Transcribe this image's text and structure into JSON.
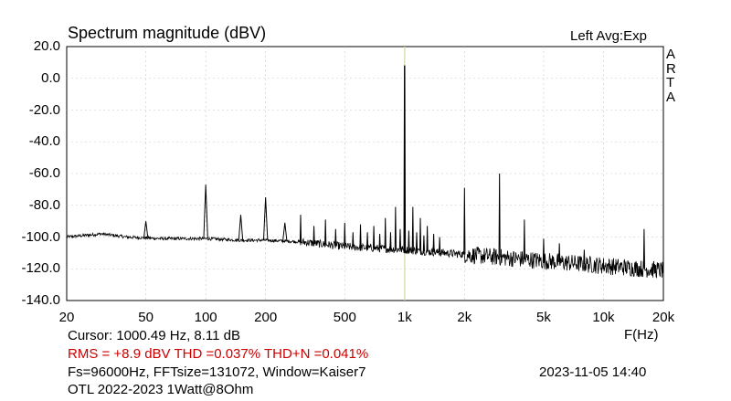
{
  "header": {
    "title": "Spectrum magnitude (dBV)",
    "channel_avg": "Left  Avg:Exp",
    "brand_letters": [
      "A",
      "R",
      "T",
      "A"
    ]
  },
  "axes": {
    "x_unit_label": "F(Hz)"
  },
  "info": {
    "cursor": "Cursor: 1000.49 Hz, 8.11 dB",
    "rms_line": "RMS =   +8.9 dBV THD =0.037% THD+N =0.041%",
    "fft_line": "Fs=96000Hz, FFTsize=131072, Window=Kaiser7",
    "datetime": "2023-11-05  14:40",
    "description": "OTL 2022-2023 1Watt@8Ohm"
  },
  "colors": {
    "trace": "#000000",
    "cursor": "#d8d8a0",
    "info_red": "#cc0000",
    "grid": "#c8c8c8",
    "background": "#ffffff"
  },
  "chart_data": {
    "type": "line",
    "title": "Spectrum magnitude (dBV)",
    "xlabel": "F(Hz)",
    "ylabel": "",
    "x_scale": "log",
    "xlim": [
      20,
      20000
    ],
    "ylim": [
      -140,
      20
    ],
    "grid": true,
    "x_ticks": [
      {
        "value": 20,
        "label": "20"
      },
      {
        "value": 50,
        "label": "50"
      },
      {
        "value": 100,
        "label": "100"
      },
      {
        "value": 200,
        "label": "200"
      },
      {
        "value": 500,
        "label": "500"
      },
      {
        "value": 1000,
        "label": "1k"
      },
      {
        "value": 2000,
        "label": "2k"
      },
      {
        "value": 5000,
        "label": "5k"
      },
      {
        "value": 10000,
        "label": "10k"
      },
      {
        "value": 20000,
        "label": "20k"
      }
    ],
    "y_ticks": [
      {
        "value": 20,
        "label": "20.0"
      },
      {
        "value": 0,
        "label": "0.0"
      },
      {
        "value": -20,
        "label": "-20.0"
      },
      {
        "value": -40,
        "label": "-40.0"
      },
      {
        "value": -60,
        "label": "-60.0"
      },
      {
        "value": -80,
        "label": "-80.0"
      },
      {
        "value": -100,
        "label": "-100.0"
      },
      {
        "value": -120,
        "label": "-120.0"
      },
      {
        "value": -140,
        "label": "-140.0"
      }
    ],
    "cursor_x": 1000.49,
    "noise_floor": [
      [
        20,
        -100
      ],
      [
        30,
        -98
      ],
      [
        40,
        -100
      ],
      [
        60,
        -101
      ],
      [
        100,
        -101
      ],
      [
        150,
        -102
      ],
      [
        200,
        -102
      ],
      [
        300,
        -103
      ],
      [
        500,
        -106
      ],
      [
        1000,
        -108
      ],
      [
        2000,
        -111
      ],
      [
        5000,
        -115
      ],
      [
        10000,
        -118
      ],
      [
        20000,
        -121
      ]
    ],
    "peaks": [
      {
        "f": 50,
        "db": -90
      },
      {
        "f": 100,
        "db": -67
      },
      {
        "f": 150,
        "db": -86
      },
      {
        "f": 200,
        "db": -75
      },
      {
        "f": 250,
        "db": -91
      },
      {
        "f": 300,
        "db": -86
      },
      {
        "f": 350,
        "db": -93
      },
      {
        "f": 400,
        "db": -89
      },
      {
        "f": 450,
        "db": -95
      },
      {
        "f": 500,
        "db": -91
      },
      {
        "f": 550,
        "db": -97
      },
      {
        "f": 600,
        "db": -92
      },
      {
        "f": 650,
        "db": -97
      },
      {
        "f": 700,
        "db": -93
      },
      {
        "f": 750,
        "db": -98
      },
      {
        "f": 800,
        "db": -88
      },
      {
        "f": 850,
        "db": -97
      },
      {
        "f": 900,
        "db": -81
      },
      {
        "f": 950,
        "db": -95
      },
      {
        "f": 1000,
        "db": 8.11
      },
      {
        "f": 1050,
        "db": -96
      },
      {
        "f": 1100,
        "db": -81
      },
      {
        "f": 1150,
        "db": -97
      },
      {
        "f": 1200,
        "db": -88
      },
      {
        "f": 1250,
        "db": -99
      },
      {
        "f": 1300,
        "db": -93
      },
      {
        "f": 1400,
        "db": -98
      },
      {
        "f": 1500,
        "db": -100
      },
      {
        "f": 2000,
        "db": -69
      },
      {
        "f": 3000,
        "db": -60
      },
      {
        "f": 4000,
        "db": -89
      },
      {
        "f": 5000,
        "db": -101
      },
      {
        "f": 6000,
        "db": -104
      },
      {
        "f": 8000,
        "db": -108
      },
      {
        "f": 16000,
        "db": -95
      }
    ]
  }
}
